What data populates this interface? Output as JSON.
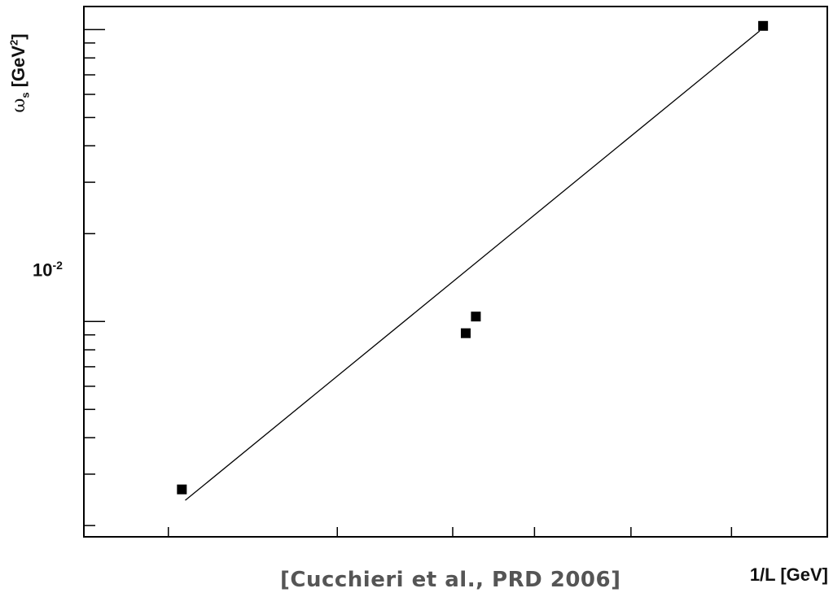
{
  "chart_data": {
    "type": "scatter",
    "x_axis": {
      "label_text": "1/L [GeV]",
      "tick_labels": []
    },
    "y_axis": {
      "label_symbol": "ω",
      "label_sub": "s",
      "label_unit": " [GeV",
      "label_exp": "2",
      "label_close": "]",
      "scale": "log",
      "tick_label": {
        "base": "10",
        "exp": "-2",
        "value": 0.01
      }
    },
    "citation": "[Cucchieri et al., PRD 2006]",
    "points": [
      {
        "x": 0.058,
        "y": 0.00266
      },
      {
        "x": 0.226,
        "y": 0.00912
      },
      {
        "x": 0.232,
        "y": 0.0104
      },
      {
        "x": 0.402,
        "y": 0.103
      }
    ],
    "fit_line": {
      "x": [
        0.06,
        0.4
      ],
      "y": [
        0.00244,
        0.099
      ]
    },
    "grid": false,
    "legend": "none"
  }
}
